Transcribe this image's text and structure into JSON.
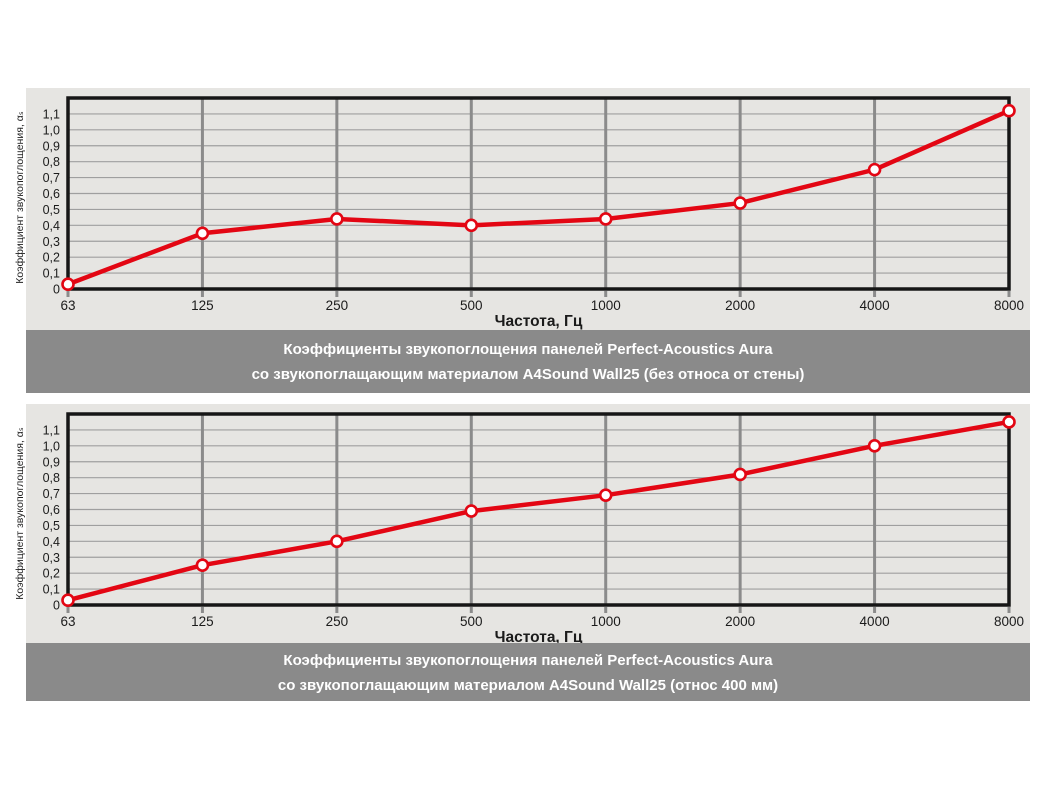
{
  "colors": {
    "page_bg": "#ffffff",
    "panel_bg": "#e6e5e2",
    "caption_bg": "#8a8a8a",
    "caption_text": "#ffffff",
    "grid_horizontal": "#9f9f9f",
    "grid_vertical": "#8b8b8b",
    "plot_border": "#161616",
    "series_line": "#e30613",
    "point_fill": "#ffffff",
    "tick_text": "#1b1b1b"
  },
  "chart_data": [
    {
      "type": "line",
      "title": "Коэффициенты звукопоглощения панелей Perfect-Acoustics Aura",
      "subtitle": "со звукопоглащающим материалом A4Sound Wall25 (без относа от стены)",
      "categories": [
        "63",
        "125",
        "250",
        "500",
        "1000",
        "2000",
        "4000",
        "8000"
      ],
      "values": [
        0.03,
        0.35,
        0.44,
        0.4,
        0.44,
        0.54,
        0.75,
        1.12
      ],
      "xlabel": "Частота, Гц",
      "ylabel": "Коэффициент звукопоглощения, αₛ",
      "ylim": [
        0,
        1.2
      ],
      "ytick_step": 0.1,
      "ytick_labels": [
        "0",
        "0,1",
        "0,2",
        "0,3",
        "0,4",
        "0,5",
        "0,6",
        "0,7",
        "0,8",
        "0,9",
        "1,0",
        "1,1"
      ],
      "grid": true,
      "legend": "none"
    },
    {
      "type": "line",
      "title": "Коэффициенты звукопоглощения панелей Perfect-Acoustics Aura",
      "subtitle": "со звукопоглащающим материалом A4Sound Wall25 (относ 400 мм)",
      "categories": [
        "63",
        "125",
        "250",
        "500",
        "1000",
        "2000",
        "4000",
        "8000"
      ],
      "values": [
        0.03,
        0.25,
        0.4,
        0.59,
        0.69,
        0.82,
        1.0,
        1.15
      ],
      "xlabel": "Частота, Гц",
      "ylabel": "Коэффициент звукопоглощения, αₛ",
      "ylim": [
        0,
        1.2
      ],
      "ytick_step": 0.1,
      "ytick_labels": [
        "0",
        "0,1",
        "0,2",
        "0,3",
        "0,4",
        "0,5",
        "0,6",
        "0,7",
        "0,8",
        "0,9",
        "1,0",
        "1,1"
      ],
      "grid": true,
      "legend": "none"
    }
  ]
}
